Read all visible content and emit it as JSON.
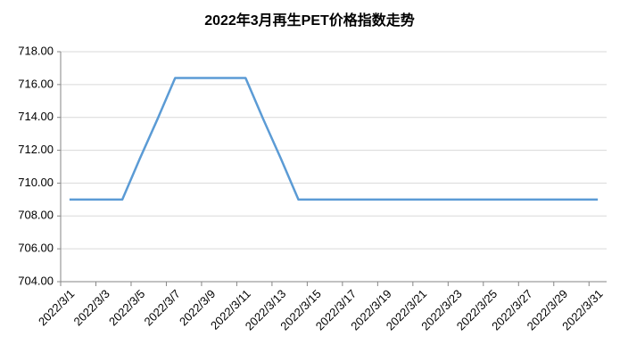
{
  "chart_data": {
    "type": "line",
    "title": "2022年3月再生PET价格指数走势",
    "categories": [
      "2022/3/1",
      null,
      "2022/3/3",
      null,
      "2022/3/5",
      null,
      "2022/3/7",
      null,
      "2022/3/9",
      null,
      "2022/3/11",
      null,
      "2022/3/13",
      null,
      "2022/3/15",
      null,
      "2022/3/17",
      null,
      "2022/3/19",
      null,
      "2022/3/21",
      null,
      "2022/3/23",
      null,
      "2022/3/25",
      null,
      "2022/3/27",
      null,
      "2022/3/29",
      null,
      "2022/3/31"
    ],
    "values": [
      709,
      709,
      709,
      709,
      711.5,
      713.9,
      716.4,
      716.4,
      716.4,
      716.4,
      716.4,
      713.9,
      711.5,
      709,
      709,
      709,
      709,
      709,
      709,
      709,
      709,
      709,
      709,
      709,
      709,
      709,
      709,
      709,
      709,
      709,
      709
    ],
    "color": "#5b9bd5",
    "ylim": [
      704,
      718
    ],
    "yticks": [
      {
        "value": 704,
        "label": "704.00"
      },
      {
        "value": 706,
        "label": "706.00"
      },
      {
        "value": 708,
        "label": "708.00"
      },
      {
        "value": 710,
        "label": "710.00"
      },
      {
        "value": 712,
        "label": "712.00"
      },
      {
        "value": 714,
        "label": "714.00"
      },
      {
        "value": 716,
        "label": "716.00"
      },
      {
        "value": 718,
        "label": "718.00"
      }
    ],
    "grid": true
  }
}
